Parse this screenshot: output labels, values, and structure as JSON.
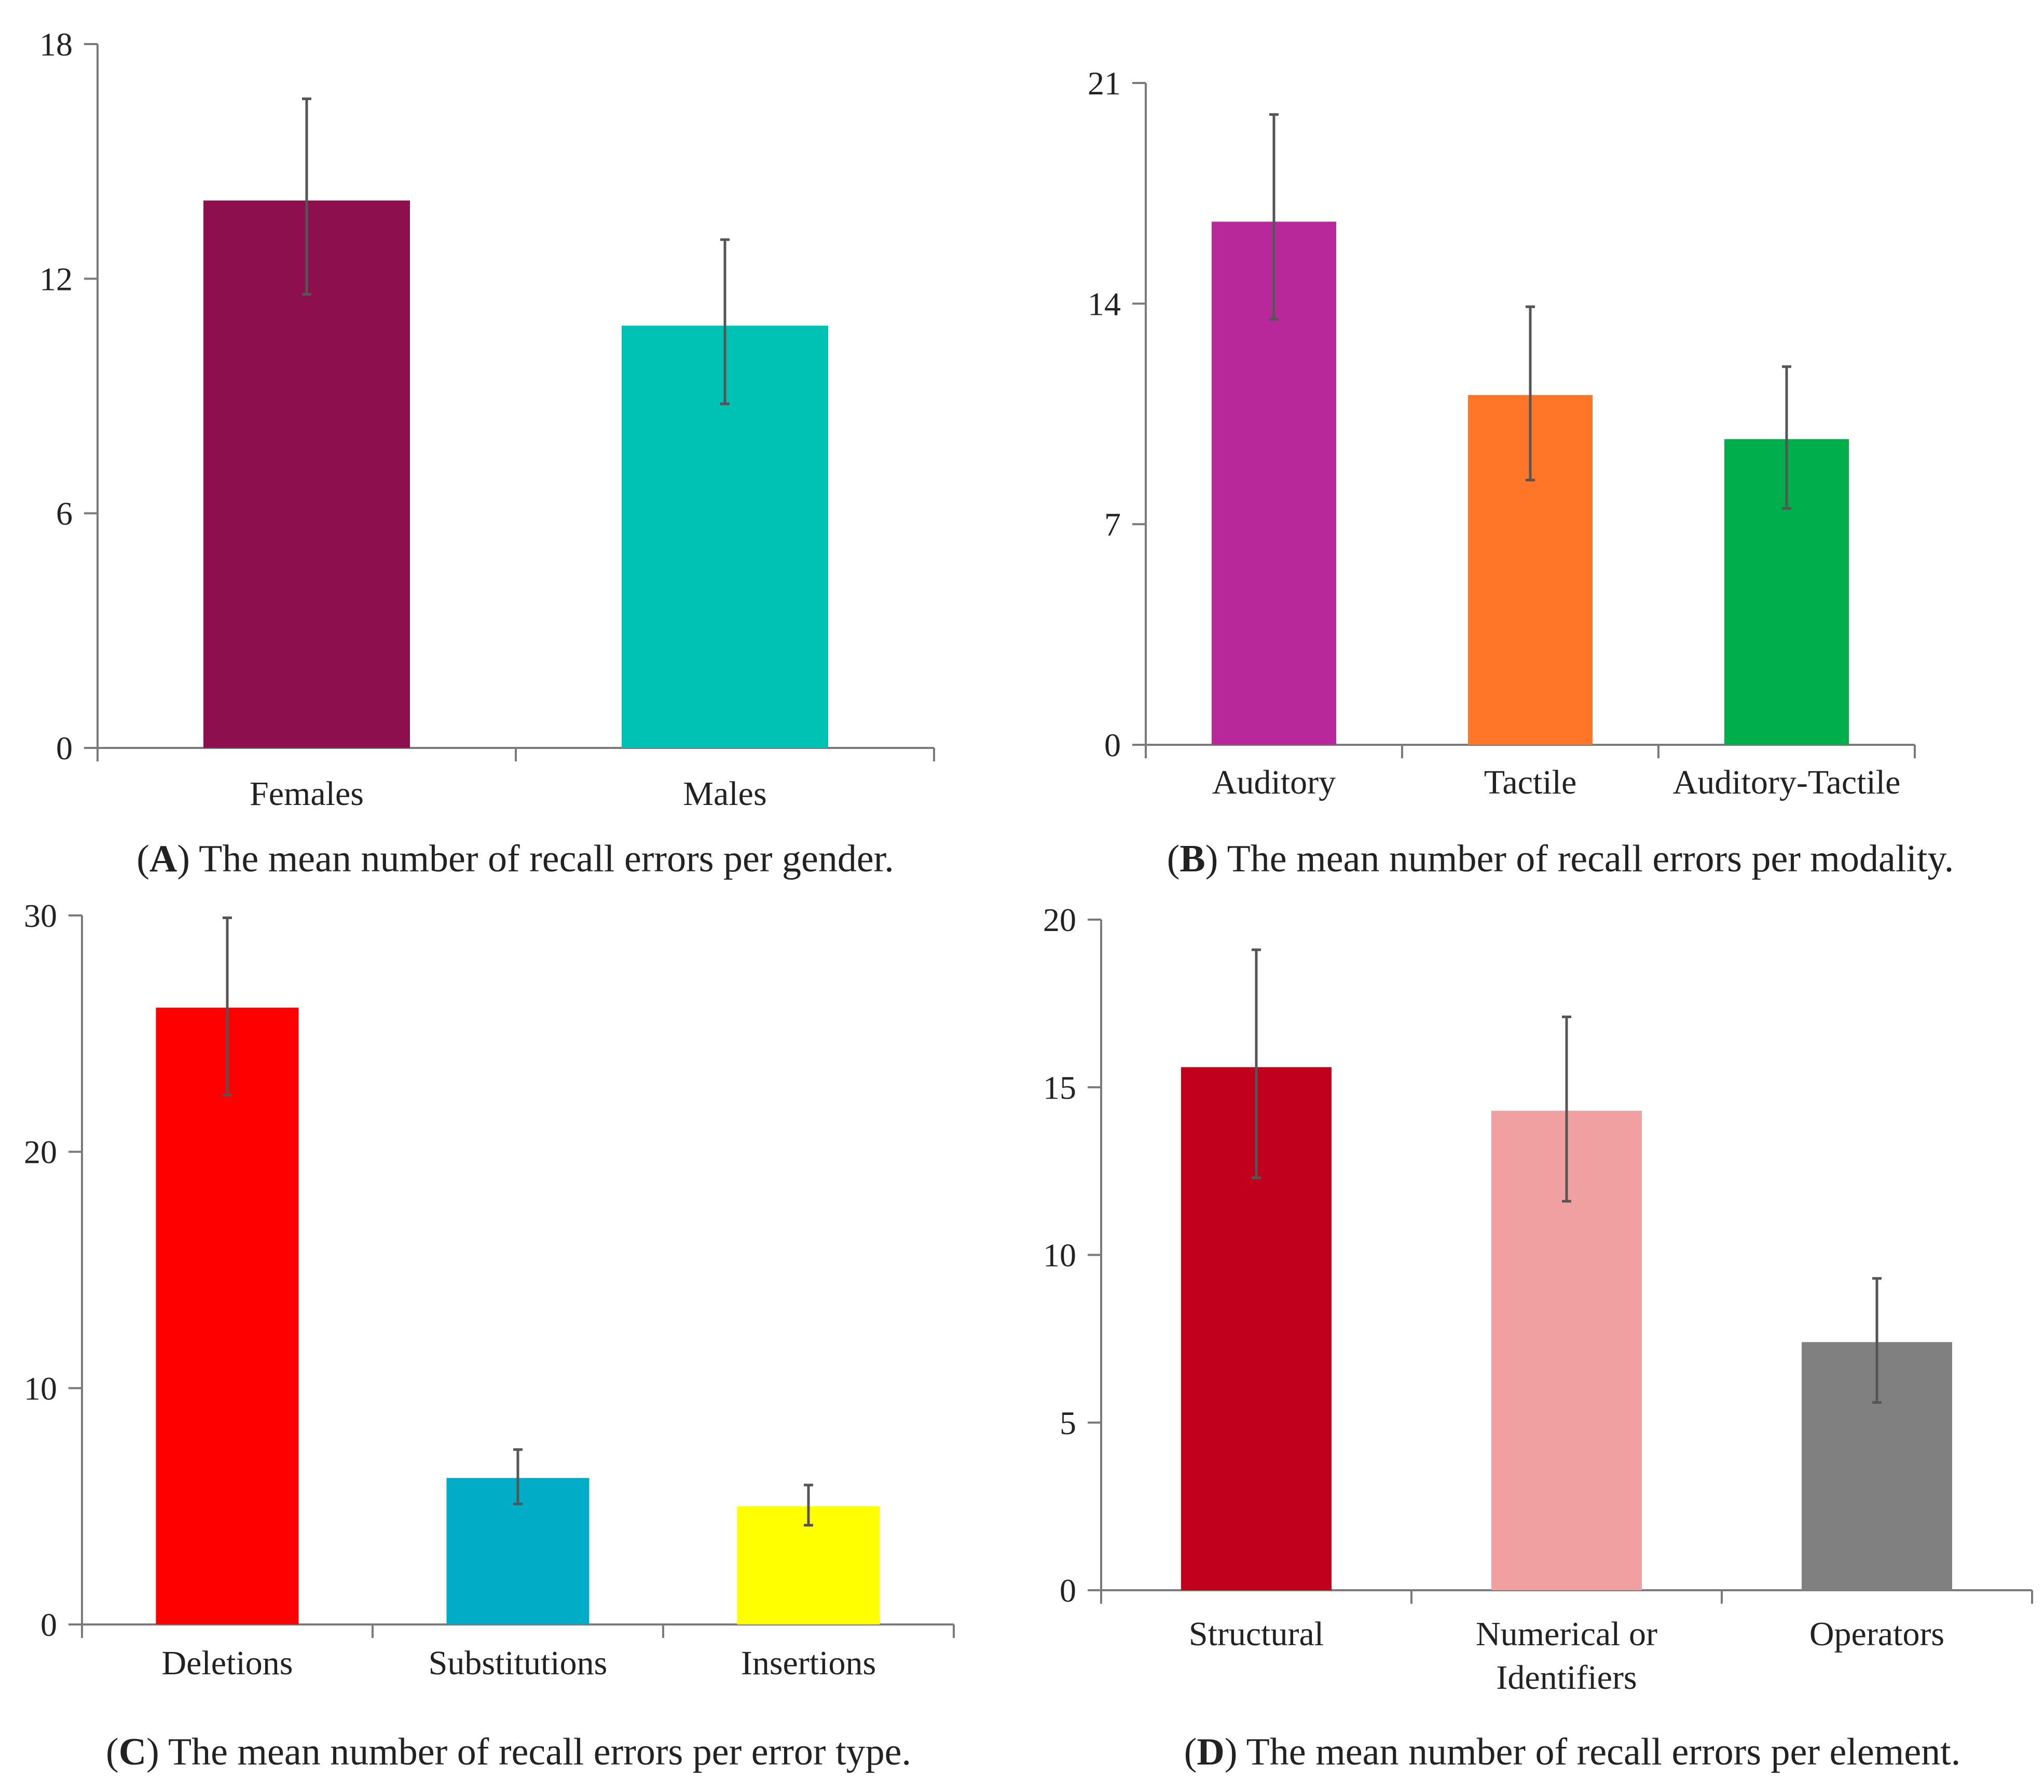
{
  "chart_data": [
    {
      "id": "A",
      "type": "bar",
      "caption_letter": "A",
      "caption_text": "The mean number of recall errors per gender.",
      "categories": [
        "Females",
        "Males"
      ],
      "values": [
        14.0,
        10.8
      ],
      "error_low": [
        11.6,
        8.8
      ],
      "error_high": [
        16.6,
        13.0
      ],
      "colors": [
        "#8E0F4D",
        "#00C2B4"
      ],
      "ylim": [
        0,
        18
      ],
      "yticks": [
        0,
        6,
        12,
        18
      ],
      "xlabel": "",
      "ylabel": ""
    },
    {
      "id": "B",
      "type": "bar",
      "caption_letter": "B",
      "caption_text": "The mean number of recall errors per modality.",
      "categories": [
        "Auditory",
        "Tactile",
        "Auditory-Tactile"
      ],
      "values": [
        16.6,
        11.1,
        9.7
      ],
      "error_low": [
        13.5,
        8.4,
        7.5
      ],
      "error_high": [
        20.0,
        13.9,
        12.0
      ],
      "colors": [
        "#B8289A",
        "#FF7629",
        "#00AE4B"
      ],
      "ylim": [
        0,
        21
      ],
      "yticks": [
        0,
        7,
        14,
        21
      ],
      "xlabel": "",
      "ylabel": ""
    },
    {
      "id": "C",
      "type": "bar",
      "caption_letter": "C",
      "caption_text": "The mean number of recall errors per error type.",
      "categories": [
        "Deletions",
        "Substitutions",
        "Insertions"
      ],
      "values": [
        26.1,
        6.2,
        5.0
      ],
      "error_low": [
        22.4,
        5.1,
        4.2
      ],
      "error_high": [
        29.9,
        7.4,
        5.9
      ],
      "colors": [
        "#FF0000",
        "#00ACC6",
        "#FFFF00"
      ],
      "ylim": [
        0,
        30
      ],
      "yticks": [
        0,
        10,
        20,
        30
      ],
      "xlabel": "",
      "ylabel": ""
    },
    {
      "id": "D",
      "type": "bar",
      "caption_letter": "D",
      "caption_text": "The mean number of recall errors per element.",
      "categories": [
        "Structural",
        "Numerical or Identifiers",
        "Operators"
      ],
      "category_lines": [
        [
          "Structural"
        ],
        [
          "Numerical or",
          "Identifiers"
        ],
        [
          "Operators"
        ]
      ],
      "values": [
        15.6,
        14.3,
        7.4
      ],
      "error_low": [
        12.3,
        11.6,
        5.6
      ],
      "error_high": [
        19.1,
        17.1,
        9.3
      ],
      "colors": [
        "#C0001C",
        "#F0A0A0",
        "#808080"
      ],
      "ylim": [
        0,
        20
      ],
      "yticks": [
        0,
        5,
        10,
        15,
        20
      ],
      "xlabel": "",
      "ylabel": ""
    }
  ]
}
